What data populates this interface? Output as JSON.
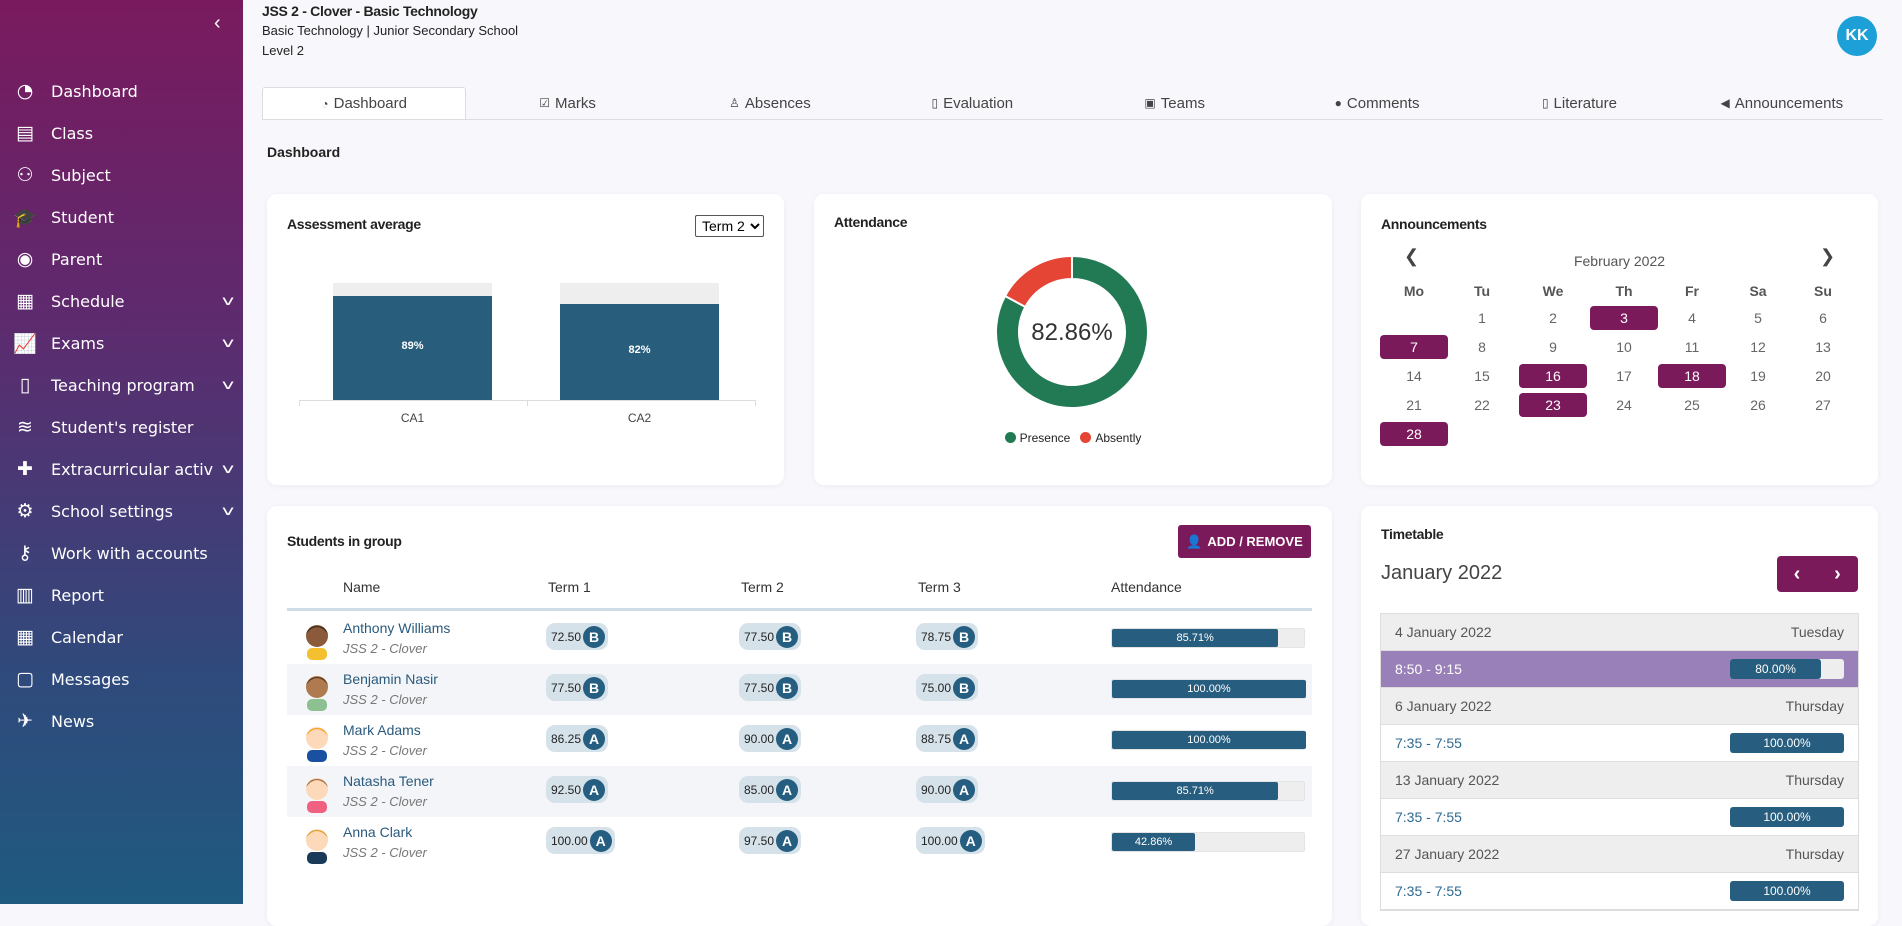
{
  "colors": {
    "brand": "#7b1a5a",
    "primary": "#275d7e",
    "presence": "#227a55",
    "absence": "#e54535",
    "avatar": "#1d9fd8"
  },
  "sidebar": {
    "collapse_icon": "chevron-left-icon",
    "items": [
      {
        "label": "Dashboard",
        "icon": "gauge-icon"
      },
      {
        "label": "Class",
        "icon": "id-card-icon"
      },
      {
        "label": "Subject",
        "icon": "users-icon"
      },
      {
        "label": "Student",
        "icon": "graduation-cap-icon"
      },
      {
        "label": "Parent",
        "icon": "user-circle-icon"
      },
      {
        "label": "Schedule",
        "icon": "table-icon",
        "expandable": true
      },
      {
        "label": "Exams",
        "icon": "chart-line-icon",
        "expandable": true
      },
      {
        "label": "Teaching program",
        "icon": "book-icon",
        "expandable": true
      },
      {
        "label": "Student's register",
        "icon": "layers-icon"
      },
      {
        "label": "Extracurricular activ...",
        "icon": "puzzle-icon",
        "expandable": true
      },
      {
        "label": "School settings",
        "icon": "gear-icon",
        "expandable": true
      },
      {
        "label": "Work with accounts",
        "icon": "key-icon"
      },
      {
        "label": "Report",
        "icon": "bar-chart-icon"
      },
      {
        "label": "Calendar",
        "icon": "calendar-icon"
      },
      {
        "label": "Messages",
        "icon": "chat-icon"
      },
      {
        "label": "News",
        "icon": "pin-icon"
      }
    ]
  },
  "header": {
    "title": "JSS 2 - Clover - Basic Technology",
    "subtitle": "Basic Technology | Junior Secondary School",
    "level": "Level 2",
    "avatar_initials": "KK"
  },
  "tabs": [
    {
      "label": "Dashboard",
      "icon": "gauge-icon",
      "active": true
    },
    {
      "label": "Marks",
      "icon": "check-square-icon"
    },
    {
      "label": "Absences",
      "icon": "user-icon"
    },
    {
      "label": "Evaluation",
      "icon": "book-icon"
    },
    {
      "label": "Teams",
      "icon": "teams-icon"
    },
    {
      "label": "Comments",
      "icon": "comment-icon"
    },
    {
      "label": "Literature",
      "icon": "book-icon"
    },
    {
      "label": "Announcements",
      "icon": "megaphone-icon"
    }
  ],
  "section_title": "Dashboard",
  "assessment": {
    "title": "Assessment average",
    "term_select": "Term 2"
  },
  "chart_data": [
    {
      "type": "bar",
      "categories": [
        "CA1",
        "CA2"
      ],
      "values": [
        89,
        82
      ],
      "data_labels": [
        "89%",
        "82%"
      ],
      "ylim": [
        0,
        100
      ],
      "grid": false
    },
    {
      "type": "pie",
      "title": "Attendance",
      "center_label": "82.86%",
      "slices": [
        {
          "name": "Presence",
          "value": 82.86
        },
        {
          "name": "Absently",
          "value": 17.14
        }
      ],
      "legend": "bottom"
    }
  ],
  "attendance": {
    "title": "Attendance"
  },
  "announcements": {
    "title": "Announcements",
    "month": "February 2022",
    "weekdays": [
      "Mo",
      "Tu",
      "We",
      "Th",
      "Fr",
      "Sa",
      "Su"
    ],
    "first_weekday_index": 1,
    "days_in_month": 28,
    "event_days": [
      3,
      7,
      16,
      18,
      23,
      28
    ]
  },
  "students": {
    "title": "Students in group",
    "add_button": "ADD / REMOVE",
    "columns": [
      "Name",
      "Term 1",
      "Term 2",
      "Term 3",
      "Attendance"
    ],
    "rows": [
      {
        "name": "Anthony Williams",
        "group": "JSS 2 - Clover",
        "t1": "72.50",
        "g1": "B",
        "t2": "77.50",
        "g2": "B",
        "t3": "78.75",
        "g3": "B",
        "attendance": "85.71%",
        "att_value": 85.71,
        "skin": "#8a5a3a",
        "hair": "#3a2a1a",
        "shirt": "#f4c030"
      },
      {
        "name": "Benjamin Nasir",
        "group": "JSS 2 - Clover",
        "t1": "77.50",
        "g1": "B",
        "t2": "77.50",
        "g2": "B",
        "t3": "75.00",
        "g3": "B",
        "attendance": "100.00%",
        "att_value": 100,
        "skin": "#b07a50",
        "hair": "#5a3a1a",
        "shirt": "#8cc090"
      },
      {
        "name": "Mark Adams",
        "group": "JSS 2 - Clover",
        "t1": "86.25",
        "g1": "A",
        "t2": "90.00",
        "g2": "A",
        "t3": "88.75",
        "g3": "A",
        "attendance": "100.00%",
        "att_value": 100,
        "skin": "#fcd9b8",
        "hair": "#f5a020",
        "shirt": "#1a50a0"
      },
      {
        "name": "Natasha Tener",
        "group": "JSS 2 - Clover",
        "t1": "92.50",
        "g1": "A",
        "t2": "85.00",
        "g2": "A",
        "t3": "90.00",
        "g3": "A",
        "attendance": "85.71%",
        "att_value": 85.71,
        "skin": "#fcd9b8",
        "hair": "#a06a40",
        "shirt": "#f06080"
      },
      {
        "name": "Anna Clark",
        "group": "JSS 2 - Clover",
        "t1": "100.00",
        "g1": "A",
        "t2": "97.50",
        "g2": "A",
        "t3": "100.00",
        "g3": "A",
        "attendance": "42.86%",
        "att_value": 42.86,
        "skin": "#fcd9b8",
        "hair": "#e0a030",
        "shirt": "#1a3a5a"
      }
    ]
  },
  "timetable": {
    "title": "Timetable",
    "month": "January 2022",
    "rows": [
      {
        "kind": "date",
        "left": "4 January 2022",
        "right": "Tuesday"
      },
      {
        "kind": "lesson",
        "left": "8:50 - 9:15",
        "attendance": "80.00%",
        "value": 80,
        "selected": true
      },
      {
        "kind": "date",
        "left": "6 January 2022",
        "right": "Thursday"
      },
      {
        "kind": "lesson",
        "left": "7:35 - 7:55",
        "attendance": "100.00%",
        "value": 100
      },
      {
        "kind": "date",
        "left": "13 January 2022",
        "right": "Thursday"
      },
      {
        "kind": "lesson",
        "left": "7:35 - 7:55",
        "attendance": "100.00%",
        "value": 100
      },
      {
        "kind": "date",
        "left": "27 January 2022",
        "right": "Thursday"
      },
      {
        "kind": "lesson",
        "left": "7:35 - 7:55",
        "attendance": "100.00%",
        "value": 100
      }
    ]
  }
}
